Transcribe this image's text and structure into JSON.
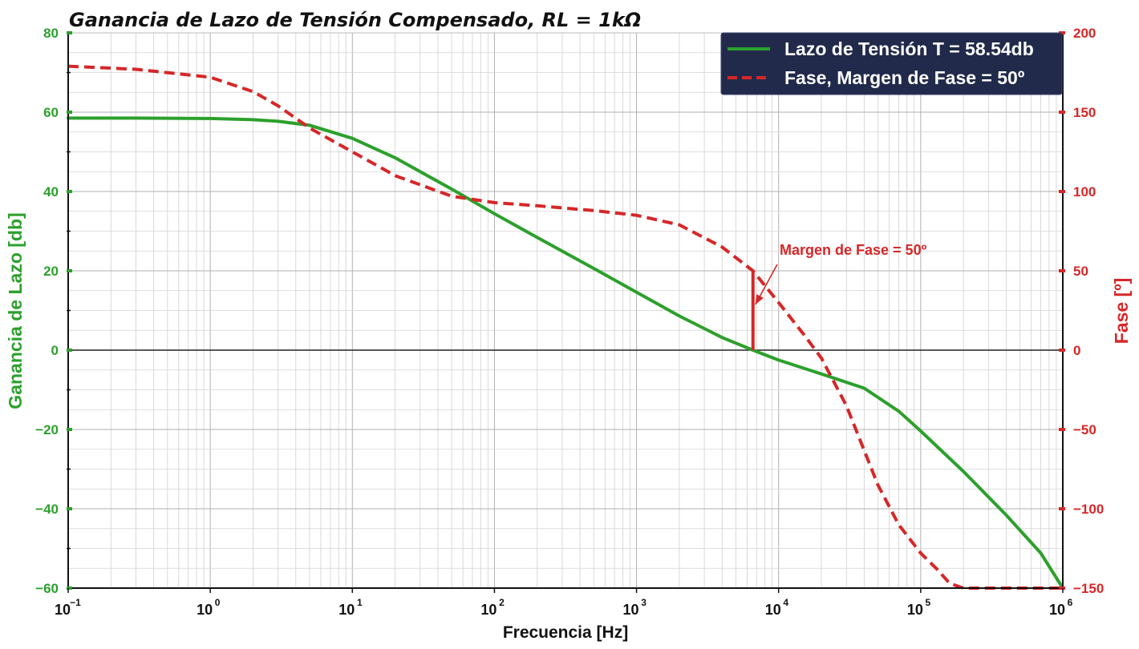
{
  "chart_data": {
    "type": "line",
    "title": "Ganancia de Lazo de Tensión Compensado,  RL = 1kΩ",
    "xlabel": "Frecuencia [Hz]",
    "ylabel_left": "Ganancia de Lazo [db]",
    "ylabel_right": "Fase [º]",
    "x_scale": "log",
    "xlim": [
      0.1,
      1000000
    ],
    "ylim_left": [
      -60,
      80
    ],
    "ylim_right": [
      -150,
      200
    ],
    "grid": true,
    "legend_position": "top-right",
    "x_ticks": [
      {
        "base": "10",
        "exp": "−1"
      },
      {
        "base": "10",
        "exp": "0"
      },
      {
        "base": "10",
        "exp": "1"
      },
      {
        "base": "10",
        "exp": "2"
      },
      {
        "base": "10",
        "exp": "3"
      },
      {
        "base": "10",
        "exp": "4"
      },
      {
        "base": "10",
        "exp": "5"
      },
      {
        "base": "10",
        "exp": "6"
      }
    ],
    "y_ticks_left": [
      "80",
      "60",
      "40",
      "20",
      "0",
      "−20",
      "−40",
      "−60"
    ],
    "y_ticks_right": [
      "200",
      "150",
      "100",
      "50",
      "0",
      "−50",
      "−100",
      "−150"
    ],
    "series": [
      {
        "name": "Lazo de Tensión T = 58.54db",
        "axis": "left",
        "color": "#2ca02c",
        "style": "solid",
        "x": [
          0.1,
          0.3,
          1,
          2,
          3,
          5,
          10,
          20,
          50,
          100,
          200,
          500,
          1000,
          2000,
          4000,
          6600,
          10000,
          20000,
          40000,
          70000,
          100000,
          200000,
          400000,
          700000,
          1000000
        ],
        "y": [
          58.5,
          58.5,
          58.4,
          58.1,
          57.7,
          56.7,
          53.4,
          48.5,
          40.6,
          34.4,
          28.4,
          20.6,
          14.6,
          8.6,
          3.2,
          0.0,
          -2.5,
          -6.0,
          -9.6,
          -15.4,
          -20.4,
          -30.6,
          -41.6,
          -51.2,
          -60.0
        ]
      },
      {
        "name": "Fase, Margen de Fase = 50º",
        "axis": "right",
        "color": "#d62728",
        "style": "dashed",
        "x": [
          0.1,
          0.3,
          1,
          2,
          3,
          5,
          10,
          20,
          50,
          100,
          200,
          500,
          1000,
          2000,
          4000,
          6600,
          10000,
          15000,
          20000,
          30000,
          50000,
          70000,
          100000,
          130000,
          160000,
          200000,
          400000,
          700000,
          1000000
        ],
        "y": [
          179,
          177,
          172,
          163,
          154,
          140,
          125,
          110,
          97,
          93,
          91,
          88,
          85,
          79,
          65,
          50,
          30,
          10,
          -5,
          -35,
          -85,
          -110,
          -128,
          -138,
          -147,
          -150,
          -150,
          -150,
          -150
        ]
      }
    ],
    "annotation": {
      "text": "Margen de Fase = 50º",
      "marker_x": 6600,
      "marker_phase_from": 0,
      "marker_phase_to": 50
    }
  }
}
